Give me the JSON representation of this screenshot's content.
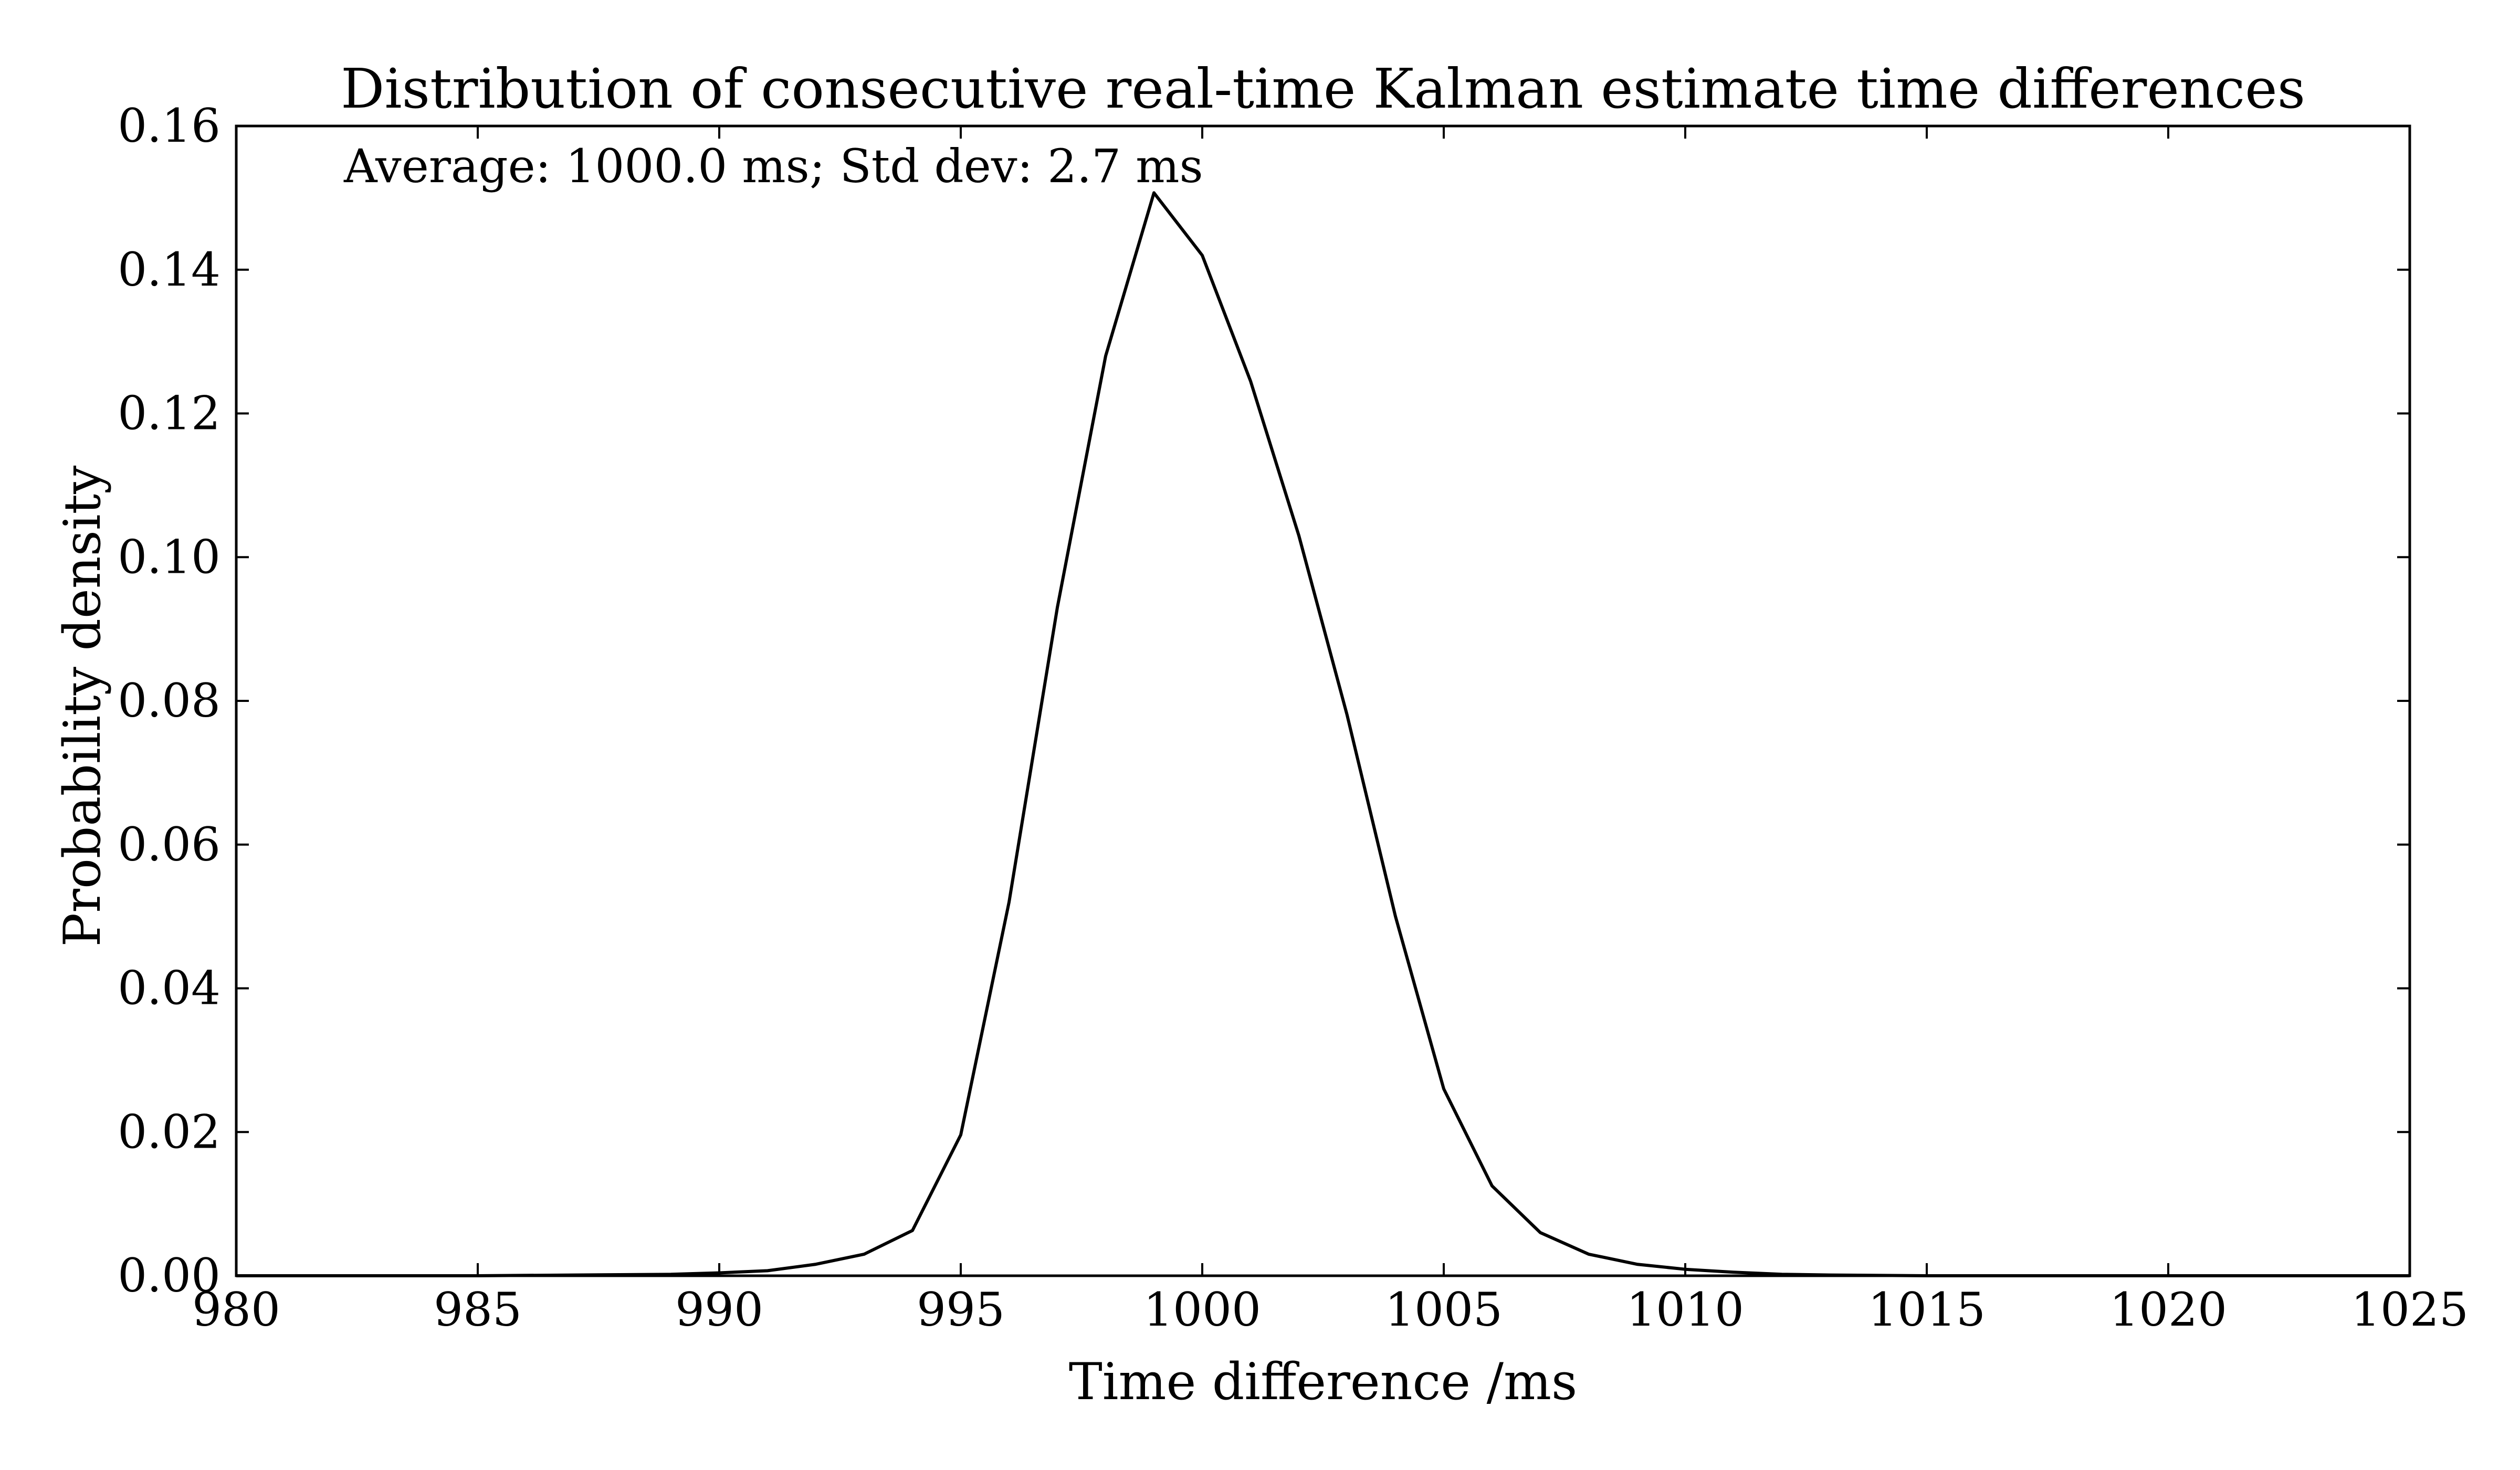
{
  "chart_data": {
    "type": "line",
    "title": "Distribution of consecutive real-time Kalman estimate time differences",
    "xlabel": "Time difference /ms",
    "ylabel": "Probability density",
    "annotation": "Average: 1000.0 ms; Std dev: 2.7 ms",
    "xlim": [
      980,
      1025
    ],
    "ylim": [
      0,
      0.16
    ],
    "xticks": [
      "980",
      "985",
      "990",
      "995",
      "1000",
      "1005",
      "1010",
      "1015",
      "1020",
      "1025"
    ],
    "yticks": [
      "0.00",
      "0.02",
      "0.04",
      "0.06",
      "0.08",
      "0.10",
      "0.12",
      "0.14",
      "0.16"
    ],
    "grid": false,
    "line_color": "#000000",
    "series": [
      {
        "x": [
          980,
          985,
          987,
          989,
          990,
          991,
          992,
          993,
          994,
          995,
          996,
          997,
          998,
          999,
          1000,
          1001,
          1002,
          1003,
          1004,
          1005,
          1006,
          1007,
          1008,
          1009,
          1010,
          1011,
          1012,
          1013,
          1015,
          1020,
          1025
        ],
        "y": [
          0.0,
          0.0,
          0.0001,
          0.0002,
          0.0004,
          0.0007,
          0.0016,
          0.003,
          0.0063,
          0.0196,
          0.052,
          0.093,
          0.128,
          0.1507,
          0.142,
          0.1245,
          0.103,
          0.078,
          0.05,
          0.026,
          0.0125,
          0.006,
          0.003,
          0.0016,
          0.0009,
          0.0005,
          0.0002,
          0.0001,
          0.0,
          0.0,
          0.0
        ]
      }
    ]
  }
}
